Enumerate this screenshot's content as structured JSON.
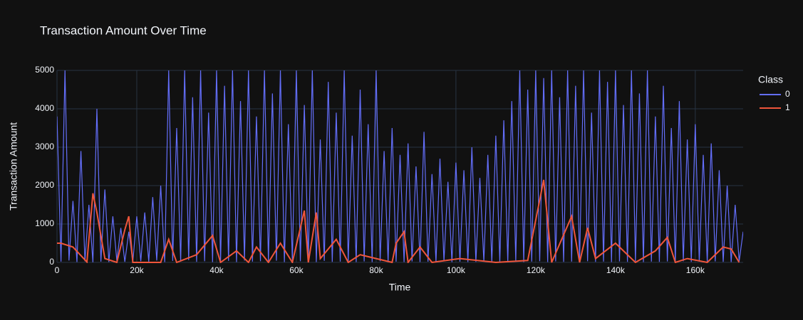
{
  "chart_data": {
    "type": "line",
    "title": "Transaction Amount Over Time",
    "x_label": "Time",
    "y_label": "Transaction Amount",
    "legend_title": "Class",
    "xlim": [
      0,
      172000
    ],
    "ylim": [
      0,
      5000
    ],
    "xticks": [
      0,
      {
        "value": 20000,
        "label": "20k"
      },
      {
        "value": 40000,
        "label": "40k"
      },
      {
        "value": 60000,
        "label": "60k"
      },
      {
        "value": 80000,
        "label": "80k"
      },
      {
        "value": 100000,
        "label": "100k"
      },
      {
        "value": 120000,
        "label": "120k"
      },
      {
        "value": 140000,
        "label": "140k"
      },
      {
        "value": 160000,
        "label": "160k"
      }
    ],
    "yticks": [
      0,
      1000,
      2000,
      3000,
      4000,
      5000
    ],
    "grid": true,
    "legend": "right",
    "series": [
      {
        "name": "0",
        "color": "#636efa",
        "x": [
          0,
          1000,
          2000,
          3000,
          4000,
          5000,
          6000,
          7000,
          8000,
          9000,
          10000,
          11000,
          12000,
          13000,
          14000,
          15000,
          16000,
          17000,
          18000,
          19000,
          20000,
          21000,
          22000,
          23000,
          24000,
          25000,
          26000,
          27000,
          28000,
          29000,
          30000,
          31000,
          32000,
          33000,
          34000,
          35000,
          36000,
          37000,
          38000,
          39000,
          40000,
          41000,
          42000,
          43000,
          44000,
          45000,
          46000,
          47000,
          48000,
          49000,
          50000,
          51000,
          52000,
          53000,
          54000,
          55000,
          56000,
          57000,
          58000,
          59000,
          60000,
          61000,
          62000,
          63000,
          64000,
          65000,
          66000,
          67000,
          68000,
          69000,
          70000,
          71000,
          72000,
          73000,
          74000,
          75000,
          76000,
          77000,
          78000,
          79000,
          80000,
          81000,
          82000,
          83000,
          84000,
          85000,
          86000,
          87000,
          88000,
          89000,
          90000,
          91000,
          92000,
          93000,
          94000,
          95000,
          96000,
          97000,
          98000,
          99000,
          100000,
          101000,
          102000,
          103000,
          104000,
          105000,
          106000,
          107000,
          108000,
          109000,
          110000,
          111000,
          112000,
          113000,
          114000,
          115000,
          116000,
          117000,
          118000,
          119000,
          120000,
          121000,
          122000,
          123000,
          124000,
          125000,
          126000,
          127000,
          128000,
          129000,
          130000,
          131000,
          132000,
          133000,
          134000,
          135000,
          136000,
          137000,
          138000,
          139000,
          140000,
          141000,
          142000,
          143000,
          144000,
          145000,
          146000,
          147000,
          148000,
          149000,
          150000,
          151000,
          152000,
          153000,
          154000,
          155000,
          156000,
          157000,
          158000,
          159000,
          160000,
          161000,
          162000,
          163000,
          164000,
          165000,
          166000,
          167000,
          168000,
          169000,
          170000,
          171000,
          172000
        ],
        "values": [
          3800,
          20,
          5000,
          50,
          1600,
          10,
          2900,
          30,
          1500,
          5,
          4000,
          20,
          1900,
          10,
          1200,
          40,
          900,
          15,
          800,
          10,
          1200,
          30,
          1300,
          20,
          1700,
          50,
          2000,
          10,
          5000,
          40,
          3500,
          20,
          5000,
          60,
          4300,
          15,
          5000,
          30,
          3900,
          10,
          5000,
          25,
          4600,
          40,
          5000,
          10,
          4200,
          50,
          5000,
          20,
          3800,
          30,
          5000,
          15,
          4400,
          45,
          5000,
          10,
          3600,
          25,
          5000,
          30,
          4100,
          20,
          5000,
          10,
          3200,
          40,
          4700,
          15,
          3900,
          20,
          5000,
          30,
          3300,
          10,
          4500,
          25,
          3600,
          10,
          5000,
          30,
          2900,
          15,
          3500,
          20,
          2800,
          10,
          3100,
          25,
          2500,
          10,
          3400,
          20,
          2300,
          15,
          2700,
          30,
          2100,
          10,
          2600,
          20,
          2400,
          10,
          3000,
          15,
          2200,
          25,
          2800,
          10,
          3300,
          20,
          3700,
          15,
          4200,
          30,
          5000,
          10,
          4500,
          20,
          5000,
          30,
          4800,
          10,
          5000,
          25,
          4300,
          15,
          5000,
          20,
          4600,
          10,
          5000,
          30,
          3900,
          15,
          5000,
          20,
          4700,
          10,
          5000,
          25,
          4100,
          15,
          5000,
          30,
          4400,
          10,
          5000,
          20,
          3800,
          15,
          4600,
          25,
          3500,
          10,
          4200,
          30,
          3200,
          15,
          3600,
          20,
          2800,
          10,
          3100,
          25,
          2400,
          15,
          2000,
          10,
          1500,
          30,
          800
        ]
      },
      {
        "name": "1",
        "color": "#ef553b",
        "x": [
          0,
          1000,
          4000,
          7500,
          9000,
          10000,
          12000,
          15000,
          17000,
          18000,
          19000,
          26000,
          28000,
          30000,
          35000,
          39000,
          41000,
          45000,
          48000,
          50000,
          53000,
          56000,
          59000,
          62000,
          63000,
          65000,
          66000,
          70000,
          73000,
          76000,
          80000,
          84000,
          85000,
          87000,
          88000,
          91000,
          94000,
          101000,
          110000,
          118000,
          122000,
          124000,
          129000,
          131000,
          133000,
          135000,
          140000,
          145000,
          150000,
          153000,
          155000,
          158000,
          163000,
          167000,
          169000,
          171000
        ],
        "values": [
          500,
          500,
          400,
          10,
          1800,
          1300,
          100,
          0,
          850,
          1200,
          0,
          0,
          600,
          0,
          200,
          700,
          0,
          300,
          0,
          400,
          0,
          500,
          0,
          1350,
          0,
          1300,
          100,
          600,
          0,
          200,
          100,
          0,
          500,
          800,
          0,
          400,
          0,
          100,
          0,
          50,
          2150,
          0,
          1200,
          0,
          900,
          100,
          500,
          0,
          300,
          650,
          0,
          100,
          0,
          400,
          350,
          0
        ]
      }
    ]
  }
}
